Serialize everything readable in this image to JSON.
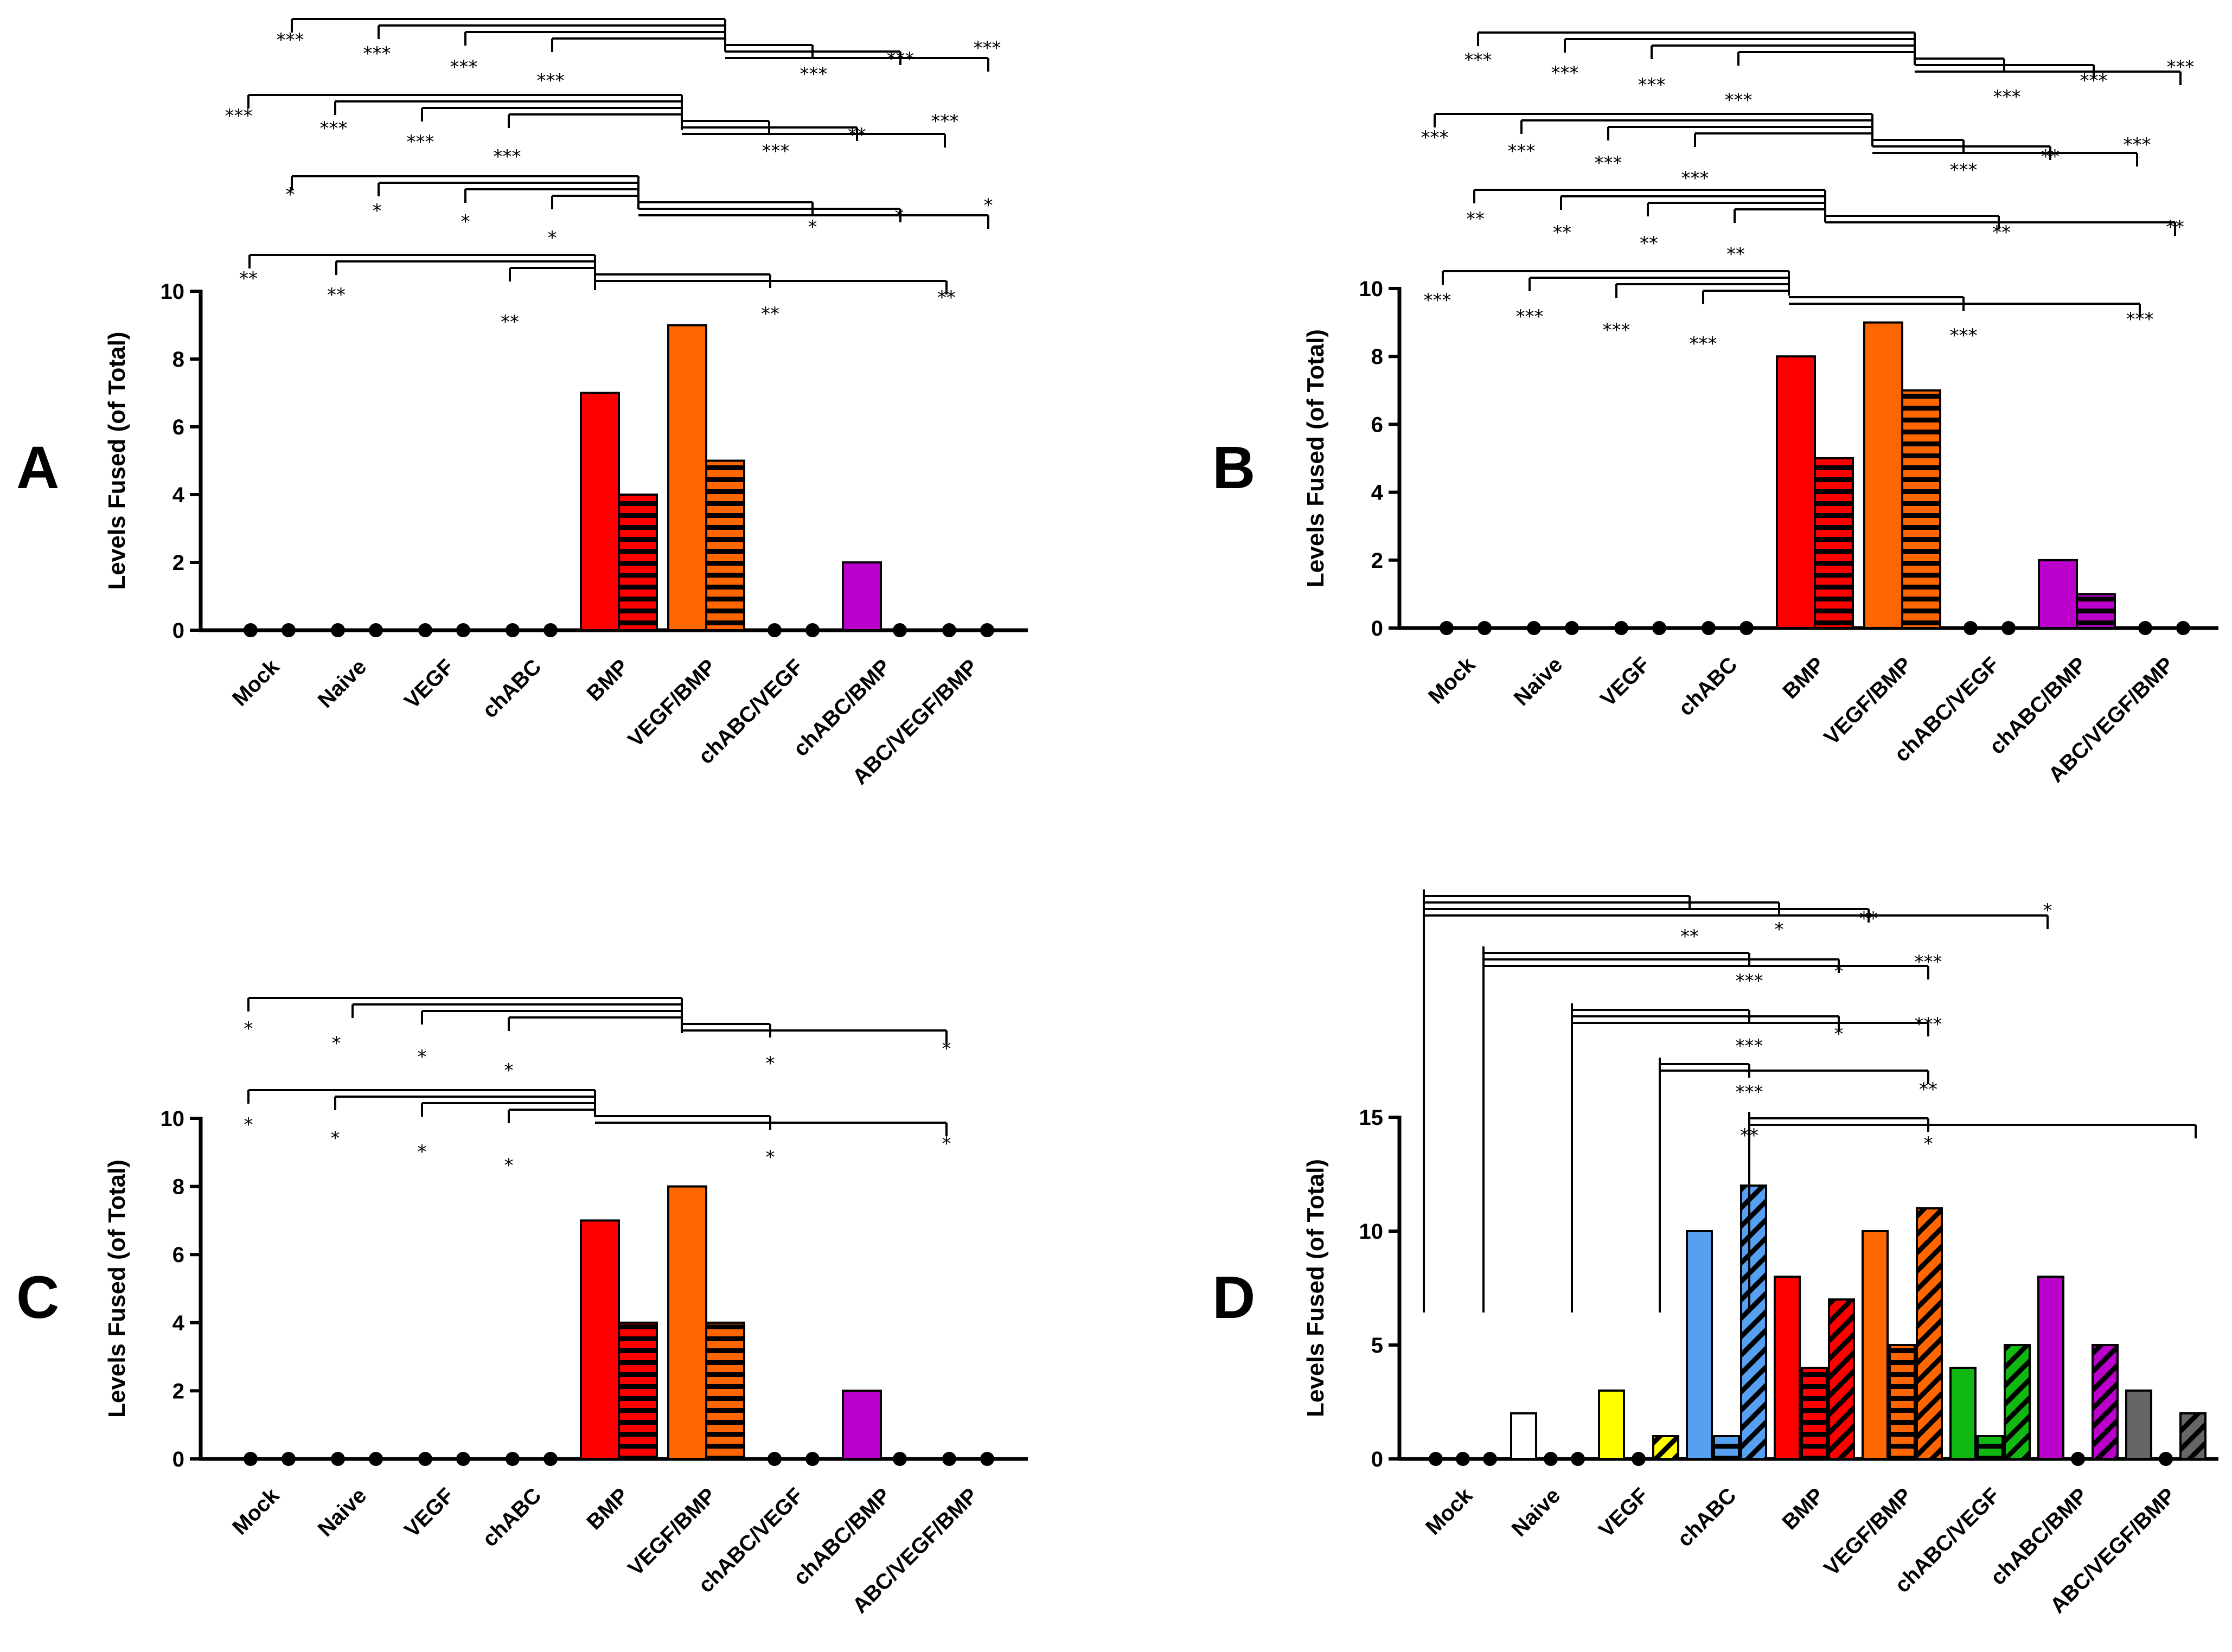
{
  "figure": {
    "categories": [
      "Mock",
      "Naive",
      "VEGF",
      "chABC",
      "BMP",
      "VEGF/BMP",
      "chABC/VEGF",
      "chABC/BMP",
      "ABC/VEGF/BMP"
    ],
    "colors": {
      "Mock": "#000000",
      "Naive": "#ffffff",
      "VEGF": "#ffff00",
      "chABC": "#55a0f0",
      "BMP": "#ff0000",
      "VEGF/BMP": "#ff6600",
      "chABC/VEGF": "#11b811",
      "chABC/BMP": "#bb00cc",
      "ABC/VEGF/BMP": "#666666"
    }
  },
  "chart_data": [
    {
      "panel": "A",
      "type": "bar",
      "ylabel": "Levels Fused (of Total)",
      "ylim": [
        0,
        10
      ],
      "yticks": [
        0,
        2,
        4,
        6,
        8,
        10
      ],
      "categories": [
        "Mock",
        "Naive",
        "VEGF",
        "chABC",
        "BMP",
        "VEGF/BMP",
        "chABC/VEGF",
        "chABC/BMP",
        "ABC/VEGF/BMP"
      ],
      "series": [
        {
          "name": "solid",
          "pattern": "solid",
          "values": [
            0,
            0,
            0,
            0,
            7,
            9,
            0,
            2,
            0
          ]
        },
        {
          "name": "horizontal stripes",
          "pattern": "hstripe",
          "values": [
            0,
            0,
            0,
            0,
            4,
            5,
            0,
            0,
            0
          ]
        }
      ],
      "significance": [
        {
          "level": 1,
          "stars": [
            "**",
            "**",
            "**",
            "**",
            "**"
          ]
        },
        {
          "level": 2,
          "stars": [
            "*",
            "*",
            "*",
            "*",
            "*",
            "*",
            "*"
          ]
        },
        {
          "level": 3,
          "stars": [
            "***",
            "***",
            "***",
            "***",
            "***",
            "**",
            "***"
          ]
        },
        {
          "level": 4,
          "stars": [
            "***",
            "***",
            "***",
            "***",
            "***",
            "***",
            "***"
          ]
        }
      ]
    },
    {
      "panel": "B",
      "type": "bar",
      "ylabel": "Levels Fused (of Total)",
      "ylim": [
        0,
        10
      ],
      "yticks": [
        0,
        2,
        4,
        6,
        8,
        10
      ],
      "categories": [
        "Mock",
        "Naive",
        "VEGF",
        "chABC",
        "BMP",
        "VEGF/BMP",
        "chABC/VEGF",
        "chABC/BMP",
        "ABC/VEGF/BMP"
      ],
      "series": [
        {
          "name": "solid",
          "pattern": "solid",
          "values": [
            0,
            0,
            0,
            0,
            8,
            9,
            0,
            2,
            0
          ]
        },
        {
          "name": "horizontal stripes",
          "pattern": "hstripe",
          "values": [
            0,
            0,
            0,
            0,
            5,
            7,
            0,
            1,
            0
          ]
        }
      ],
      "significance": [
        {
          "level": 1,
          "stars": [
            "***",
            "***",
            "***",
            "***",
            "***",
            "***"
          ]
        },
        {
          "level": 2,
          "stars": [
            "**",
            "**",
            "**",
            "**",
            "**",
            "**"
          ]
        },
        {
          "level": 3,
          "stars": [
            "***",
            "***",
            "***",
            "***",
            "***",
            "**",
            "***"
          ]
        },
        {
          "level": 4,
          "stars": [
            "***",
            "***",
            "***",
            "***",
            "***",
            "***",
            "***"
          ]
        }
      ]
    },
    {
      "panel": "C",
      "type": "bar",
      "ylabel": "Levels Fused (of Total)",
      "ylim": [
        0,
        10
      ],
      "yticks": [
        0,
        2,
        4,
        6,
        8,
        10
      ],
      "categories": [
        "Mock",
        "Naive",
        "VEGF",
        "chABC",
        "BMP",
        "VEGF/BMP",
        "chABC/VEGF",
        "chABC/BMP",
        "ABC/VEGF/BMP"
      ],
      "series": [
        {
          "name": "solid",
          "pattern": "solid",
          "values": [
            0,
            0,
            0,
            0,
            7,
            8,
            0,
            2,
            0
          ]
        },
        {
          "name": "horizontal stripes",
          "pattern": "hstripe",
          "values": [
            0,
            0,
            0,
            0,
            4,
            4,
            0,
            0,
            0
          ]
        }
      ],
      "significance": [
        {
          "level": 1,
          "stars": [
            "*",
            "*",
            "*",
            "*",
            "*",
            "*"
          ]
        },
        {
          "level": 2,
          "stars": [
            "*",
            "*",
            "*",
            "*",
            "*",
            "*"
          ]
        }
      ]
    },
    {
      "panel": "D",
      "type": "bar",
      "ylabel": "Levels Fused (of Total)",
      "ylim": [
        0,
        15
      ],
      "yticks": [
        0,
        5,
        10,
        15
      ],
      "categories": [
        "Mock",
        "Naive",
        "VEGF",
        "chABC",
        "BMP",
        "VEGF/BMP",
        "chABC/VEGF",
        "chABC/BMP",
        "ABC/VEGF/BMP"
      ],
      "series": [
        {
          "name": "solid",
          "pattern": "solid",
          "values": [
            0,
            2,
            3,
            10,
            8,
            10,
            4,
            8,
            3
          ]
        },
        {
          "name": "horizontal stripes",
          "pattern": "hstripe",
          "values": [
            0,
            0,
            0,
            1,
            4,
            5,
            1,
            0,
            0
          ]
        },
        {
          "name": "diagonal stripes",
          "pattern": "dstripe",
          "values": [
            0,
            0,
            1,
            12,
            7,
            11,
            5,
            5,
            2
          ]
        }
      ],
      "significance": [
        {
          "level": 1,
          "stars": [
            "**",
            "*",
            "**",
            "*"
          ]
        },
        {
          "level": 2,
          "stars": [
            "***",
            "*",
            "***"
          ]
        },
        {
          "level": 3,
          "stars": [
            "***",
            "*",
            "***"
          ]
        },
        {
          "level": 4,
          "stars": [
            "***",
            "**"
          ]
        },
        {
          "level": 5,
          "stars": [
            "**",
            "*"
          ]
        }
      ]
    }
  ]
}
